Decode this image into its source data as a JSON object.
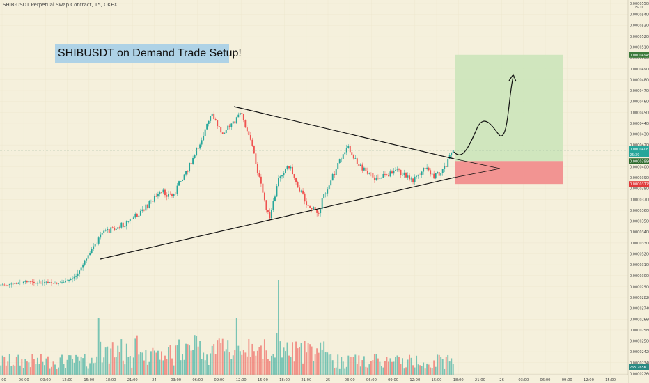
{
  "header": "SHIB-USDT Perpetual Swap Contract, 15, OKEX",
  "annotation": "SHIBUSDT on Demand Trade Setup!",
  "currency": "USDT",
  "colors": {
    "background": "#f5f0dc",
    "bull": "#26a69a",
    "bear": "#ef5350",
    "target_zone": "#c9e4b8",
    "stop_zone": "#f28a8a",
    "title_bg": "#aed2e6"
  },
  "badges": {
    "target": "0.00004945",
    "current": "0.00004082",
    "countdown": "25:39",
    "entry": "0.00003986",
    "stop": "0.00003779",
    "volume": "265.765K"
  },
  "chart_data": {
    "type": "candlestick",
    "price_axis": {
      "ticks": [
        "0.00005500",
        "0.00005400",
        "0.00005300",
        "0.00005200",
        "0.00005100",
        "0.00005000",
        "0.00004900",
        "0.00004800",
        "0.00004700",
        "0.00004600",
        "0.00004500",
        "0.00004400",
        "0.00004300",
        "0.00004200",
        "0.00004100",
        "0.00004000",
        "0.00003900",
        "0.00003800",
        "0.00003700",
        "0.00003600",
        "0.00003500",
        "0.00003400",
        "0.00003300",
        "0.00003200",
        "0.00003100",
        "0.00003000",
        "0.00002900",
        "0.00002820",
        "0.00002740",
        "0.00002660",
        "0.00002580",
        "0.00002500",
        "0.00002420",
        "0.00002340",
        "0.00002260",
        "0.00002180"
      ]
    },
    "time_axis": {
      "ticks": [
        "3:00",
        "06:00",
        "09:00",
        "12:00",
        "15:00",
        "18:00",
        "21:00",
        "24",
        "03:00",
        "06:00",
        "09:00",
        "12:00",
        "15:00",
        "18:00",
        "21:00",
        "25",
        "03:00",
        "06:00",
        "09:00",
        "12:00",
        "15:00",
        "18:00",
        "21:00",
        "26",
        "03:00",
        "06:00",
        "09:00",
        "12:00",
        "15:00"
      ]
    },
    "price_path": [
      2.87e-05,
      2.87e-05,
      2.88e-05,
      2.9e-05,
      2.88e-05,
      2.89e-05,
      2.88e-05,
      2.9e-05,
      2.95e-05,
      3.1e-05,
      3.25e-05,
      3.35e-05,
      3.38e-05,
      3.42e-05,
      3.48e-05,
      3.55e-05,
      3.65e-05,
      3.7e-05,
      3.67e-05,
      3.85e-05,
      3.98e-05,
      4.2e-05,
      4.4e-05,
      4.25e-05,
      4.3e-05,
      4.42e-05,
      4.2e-05,
      3.8e-05,
      3.45e-05,
      3.85e-05,
      3.95e-05,
      3.75e-05,
      3.58e-05,
      3.52e-05,
      3.75e-05,
      3.93e-05,
      4.13e-05,
      3.98e-05,
      3.88e-05,
      3.82e-05,
      3.85e-05,
      3.92e-05,
      3.85e-05,
      3.82e-05,
      3.92e-05,
      3.85e-05,
      3.9e-05,
      4.08e-05
    ],
    "trendlines": [
      {
        "from": [
          3.11e-05,
          "16:30"
        ],
        "to": [
          3.93e-05,
          "18:00"
        ]
      },
      {
        "from": [
          4.5e-05,
          "09:30"
        ],
        "to": [
          3.98e-05,
          "18:00"
        ]
      }
    ],
    "projection": {
      "entry": 3.986e-05,
      "stop": 3.779e-05,
      "target": 4.945e-05,
      "path": [
        4e-05,
        4.1e-05,
        4.25e-05,
        4.3e-05,
        4.22e-05,
        4.18e-05,
        4.25e-05,
        4.5e-05,
        4.78e-05
      ]
    }
  }
}
